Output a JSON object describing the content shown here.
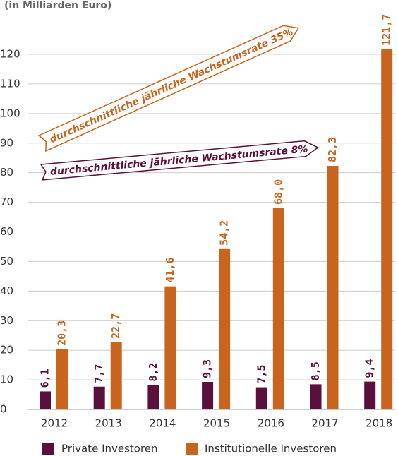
{
  "chart_data": {
    "type": "bar",
    "subtitle": "(in Milliarden Euro)",
    "categories": [
      "2012",
      "2013",
      "2014",
      "2015",
      "2016",
      "2017",
      "2018"
    ],
    "series": [
      {
        "name": "Private Investoren",
        "color": "#5a0f3c",
        "values": [
          6.1,
          7.7,
          8.2,
          9.3,
          7.5,
          8.5,
          9.4
        ],
        "value_labels": [
          "6,1",
          "7,7",
          "8,2",
          "9,3",
          "7,5",
          "8,5",
          "9,4"
        ]
      },
      {
        "name": "Institutionelle Investoren",
        "color": "#c8641e",
        "values": [
          20.3,
          22.7,
          41.6,
          54.2,
          68.0,
          82.3,
          121.7
        ],
        "value_labels": [
          "20,3",
          "22,7",
          "41,6",
          "54,2",
          "68,0",
          "82,3",
          "121,7"
        ]
      }
    ],
    "annotations": [
      "durchschnittliche jährliche Wachstumsrate 35%",
      "durchschnittliche jährliche Wachstumsrate 8%"
    ],
    "ylim": [
      0,
      120
    ],
    "yticks": [
      0,
      10,
      20,
      30,
      40,
      50,
      60,
      70,
      80,
      90,
      100,
      110,
      120
    ],
    "grid": true
  }
}
